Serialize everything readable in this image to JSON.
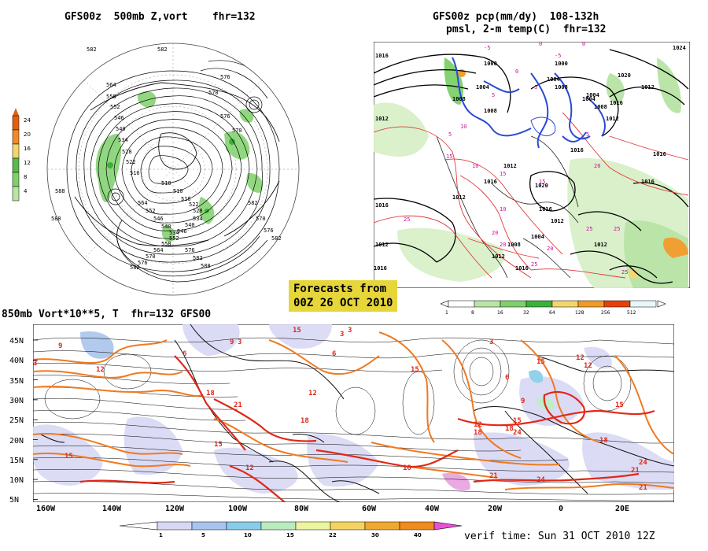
{
  "panels": {
    "polar": {
      "title": "GFS00z  500mb Z,vort    fhr=132",
      "scale_colors": [
        "#e06010",
        "#f08a2a",
        "#f3d56a",
        "#5ab84c",
        "#7ed06a",
        "#b8e4a4"
      ],
      "scale_labels": [
        "24",
        "20",
        "16",
        "12",
        "8",
        "4"
      ],
      "contour_labels": [
        "582",
        "582",
        "576",
        "576",
        "570",
        "570",
        "564",
        "558",
        "552",
        "546",
        "540",
        "534",
        "528",
        "522",
        "516",
        "510",
        "510",
        "516",
        "522",
        "528",
        "534",
        "540",
        "546",
        "552",
        "558",
        "564",
        "570",
        "576",
        "582",
        "588",
        "588",
        "576",
        "582",
        "588",
        "582",
        "570",
        "576",
        "582",
        "564",
        "552",
        "546",
        "540",
        "534"
      ]
    },
    "pcp": {
      "title_line1": "GFS00z pcp(mm/dy)  108-132h",
      "title_line2": "pmsl, 2-m temp(C)  fhr=132",
      "pressure_labels": [
        "1016",
        "1012",
        "1012",
        "1016",
        "1008",
        "1004",
        "1000",
        "1008",
        "1012",
        "1016",
        "1012",
        "1016",
        "1020",
        "1016",
        "1012",
        "1012",
        "1016",
        "1012",
        "1016",
        "1020",
        "1024",
        "1016",
        "1008",
        "1004",
        "1000",
        "1004",
        "1004",
        "1008",
        "1012",
        "1016",
        "1016",
        "1012",
        "1008",
        "1004"
      ],
      "temp_labels": [
        "-5",
        "-5",
        "0",
        "0",
        "5",
        "5",
        "10",
        "10",
        "15",
        "15",
        "20",
        "20",
        "25",
        "25",
        "25",
        "25",
        "25",
        "20",
        "20",
        "15",
        "10",
        "5",
        "0",
        "-5"
      ],
      "scale_colors": [
        "#ffffff",
        "#b8e4a4",
        "#7ed06a",
        "#3cb03c",
        "#f3d56a",
        "#f09a28",
        "#e8400c",
        "#e8f8f8"
      ],
      "scale_labels": [
        "1",
        "8",
        "16",
        "32",
        "64",
        "128",
        "256",
        "512"
      ]
    },
    "forecast_banner": {
      "line1": "Forecasts from",
      "line2": "00Z 26 OCT 2010"
    },
    "lower": {
      "title": "850mb Vort*10**5, T  fhr=132 GFS00",
      "lat_labels": [
        "45N",
        "40N",
        "35N",
        "30N",
        "25N",
        "20N",
        "15N",
        "10N",
        "5N"
      ],
      "lon_labels": [
        "160W",
        "140W",
        "120W",
        "100W",
        "80W",
        "60W",
        "40W",
        "20W",
        "0",
        "20E"
      ],
      "temp_labels": [
        "3",
        "9",
        "15",
        "12",
        "6",
        "3",
        "18",
        "21",
        "15",
        "18",
        "12",
        "15",
        "15",
        "18",
        "21",
        "24",
        "21",
        "24",
        "12",
        "9",
        "6",
        "3",
        "12",
        "15",
        "18",
        "21",
        "24",
        "18",
        "12",
        "15",
        "6",
        "3",
        "9",
        "3",
        "12",
        "15",
        "18"
      ],
      "scale_colors": [
        "#d8d8f4",
        "#a8c4ec",
        "#88cce8",
        "#b8ecc0",
        "#ecf4a0",
        "#f4d460",
        "#f0a830",
        "#f08c1c",
        "#e850d8"
      ],
      "scale_labels": [
        "1",
        "5",
        "10",
        "15",
        "22",
        "30",
        "40"
      ]
    },
    "verif": {
      "text": "verif time: Sun 31 OCT 2010 12Z"
    }
  }
}
